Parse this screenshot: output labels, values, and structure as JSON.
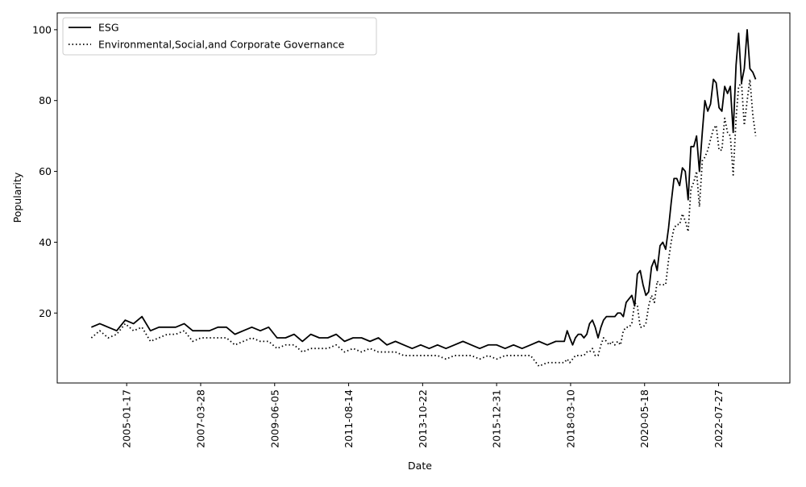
{
  "chart_data": {
    "type": "line",
    "xlabel": "Date",
    "ylabel": "Popularity",
    "x": [
      "2004-01-01",
      "2004-04-01",
      "2004-07-01",
      "2004-10-01",
      "2005-01-01",
      "2005-04-01",
      "2005-07-01",
      "2005-10-01",
      "2006-01-01",
      "2006-04-01",
      "2006-07-01",
      "2006-10-01",
      "2007-01-01",
      "2007-04-01",
      "2007-07-01",
      "2007-10-01",
      "2008-01-01",
      "2008-04-01",
      "2008-07-01",
      "2008-10-01",
      "2009-01-01",
      "2009-04-01",
      "2009-07-01",
      "2009-10-01",
      "2010-01-01",
      "2010-04-01",
      "2010-07-01",
      "2010-10-01",
      "2011-01-01",
      "2011-04-01",
      "2011-07-01",
      "2011-10-01",
      "2012-01-01",
      "2012-04-01",
      "2012-07-01",
      "2012-10-01",
      "2013-01-01",
      "2013-04-01",
      "2013-07-01",
      "2013-10-01",
      "2014-01-01",
      "2014-04-01",
      "2014-07-01",
      "2014-10-01",
      "2015-01-01",
      "2015-04-01",
      "2015-07-01",
      "2015-10-01",
      "2016-01-01",
      "2016-04-01",
      "2016-07-01",
      "2016-10-01",
      "2017-01-01",
      "2017-04-01",
      "2017-07-01",
      "2017-10-01",
      "2018-01-01",
      "2018-02-01",
      "2018-03-01",
      "2018-04-01",
      "2018-05-01",
      "2018-06-01",
      "2018-07-01",
      "2018-08-01",
      "2018-09-01",
      "2018-10-01",
      "2018-11-01",
      "2018-12-01",
      "2019-01-01",
      "2019-02-01",
      "2019-03-01",
      "2019-04-01",
      "2019-05-01",
      "2019-06-01",
      "2019-07-01",
      "2019-08-01",
      "2019-09-01",
      "2019-10-01",
      "2019-11-01",
      "2019-12-01",
      "2020-01-01",
      "2020-02-01",
      "2020-03-01",
      "2020-04-01",
      "2020-05-01",
      "2020-06-01",
      "2020-07-01",
      "2020-08-01",
      "2020-09-01",
      "2020-10-01",
      "2020-11-01",
      "2020-12-01",
      "2021-01-01",
      "2021-02-01",
      "2021-03-01",
      "2021-04-01",
      "2021-05-01",
      "2021-06-01",
      "2021-07-01",
      "2021-08-01",
      "2021-09-01",
      "2021-10-01",
      "2021-11-01",
      "2021-12-01",
      "2022-01-01",
      "2022-02-01",
      "2022-03-01",
      "2022-04-01",
      "2022-05-01",
      "2022-06-01",
      "2022-07-01",
      "2022-08-01",
      "2022-09-01",
      "2022-10-01",
      "2022-11-01",
      "2022-12-01",
      "2023-01-01",
      "2023-02-01",
      "2023-03-01",
      "2023-04-01",
      "2023-05-01",
      "2023-06-01",
      "2023-07-01",
      "2023-08-01",
      "2023-09-01"
    ],
    "series": [
      {
        "name": "ESG",
        "color": "#000000",
        "style": "solid",
        "values": [
          16,
          17,
          16,
          15,
          18,
          17,
          19,
          15,
          16,
          16,
          16,
          17,
          15,
          15,
          15,
          16,
          16,
          14,
          15,
          16,
          15,
          16,
          13,
          13,
          14,
          12,
          14,
          13,
          13,
          14,
          12,
          13,
          13,
          12,
          13,
          11,
          12,
          11,
          10,
          11,
          10,
          11,
          10,
          11,
          12,
          11,
          10,
          11,
          11,
          10,
          11,
          10,
          11,
          12,
          11,
          12,
          12,
          15,
          13,
          11,
          13,
          14,
          14,
          13,
          14,
          17,
          18,
          16,
          13,
          16,
          18,
          19,
          19,
          19,
          19,
          20,
          20,
          19,
          23,
          24,
          25,
          22,
          31,
          32,
          28,
          25,
          26,
          33,
          35,
          32,
          39,
          40,
          38,
          44,
          51,
          58,
          58,
          56,
          61,
          60,
          52,
          67,
          67,
          70,
          60,
          71,
          80,
          77,
          79,
          86,
          85,
          78,
          77,
          84,
          82,
          84,
          71,
          90,
          99,
          85,
          89,
          100,
          89,
          88,
          86
        ]
      },
      {
        "name": "Environmental,Social,and Corporate Governance",
        "color": "#000000",
        "style": "dotted",
        "values": [
          13,
          15,
          13,
          14,
          17,
          15,
          16,
          12,
          13,
          14,
          14,
          15,
          12,
          13,
          13,
          13,
          13,
          11,
          12,
          13,
          12,
          12,
          10,
          11,
          11,
          9,
          10,
          10,
          10,
          11,
          9,
          10,
          9,
          10,
          9,
          9,
          9,
          8,
          8,
          8,
          8,
          8,
          7,
          8,
          8,
          8,
          7,
          8,
          7,
          8,
          8,
          8,
          8,
          5,
          6,
          6,
          6,
          7,
          6,
          7,
          8,
          8,
          8,
          8,
          9,
          9,
          10,
          8,
          8,
          11,
          13,
          12,
          11,
          12,
          11,
          12,
          11,
          15,
          16,
          16,
          17,
          23,
          22,
          16,
          16,
          17,
          22,
          25,
          23,
          29,
          28,
          28,
          28,
          35,
          40,
          44,
          45,
          45,
          48,
          46,
          43,
          55,
          57,
          60,
          50,
          63,
          64,
          66,
          69,
          72,
          73,
          66,
          66,
          75,
          71,
          70,
          59,
          75,
          84,
          85,
          73,
          80,
          86,
          76,
          70
        ]
      }
    ],
    "xlim": [
      "2002-12-28",
      "2024-09-05"
    ],
    "xticks": [
      "2005-01-17",
      "2007-03-28",
      "2009-06-05",
      "2011-08-14",
      "2013-10-22",
      "2015-12-31",
      "2018-03-10",
      "2020-05-18",
      "2022-07-27"
    ],
    "ylim": [
      0.25,
      104.75
    ],
    "yticks": [
      20,
      40,
      60,
      80,
      100
    ],
    "legend": "upper left",
    "grid": false
  }
}
